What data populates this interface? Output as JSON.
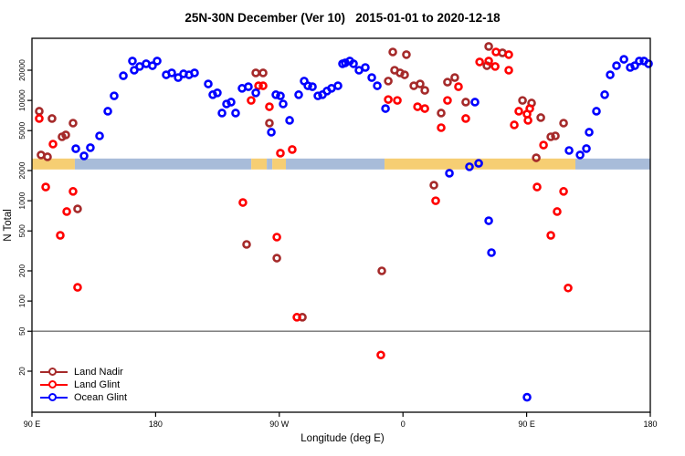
{
  "chart_data": {
    "type": "scatter",
    "title": "25N-30N December (Ver 10)   2015-01-01 to 2020-12-18",
    "xlabel": "Longitude (deg E)",
    "ylabel": "N Total",
    "x_axis": {
      "span_deg": 450,
      "tick_positions_deg": [
        0,
        90,
        180,
        270,
        360,
        450
      ],
      "tick_labels": [
        "90 E",
        "180",
        "90 W",
        "0",
        "90 E",
        "180"
      ],
      "note": "axis wraps: starts at 90E, goes east 450 degrees to 180"
    },
    "y_axis": {
      "scale": "log10",
      "tick_values": [
        20,
        50,
        100,
        200,
        500,
        1000,
        2000,
        5000,
        10000,
        20000
      ],
      "range": [
        8,
        42000
      ]
    },
    "reference_line_y": 50,
    "grid": "off",
    "legend": {
      "position": "bottom-left",
      "entries": [
        "Land Nadir",
        "Land Glint",
        "Ocean Glint"
      ]
    },
    "surface_band": {
      "center_value": 2300,
      "land_color": "#F6CE73",
      "ocean_color": "#A8BCD9",
      "segments_deg": [
        {
          "surface": "land",
          "from": 0,
          "to": 31.2
        },
        {
          "surface": "ocean",
          "from": 31.2,
          "to": 159.6
        },
        {
          "surface": "land",
          "from": 159.6,
          "to": 170.9
        },
        {
          "surface": "ocean",
          "from": 170.9,
          "to": 174.9
        },
        {
          "surface": "land",
          "from": 174.9,
          "to": 184.8
        },
        {
          "surface": "ocean",
          "from": 184.8,
          "to": 256.6
        },
        {
          "surface": "land",
          "from": 256.6,
          "to": 395.5
        },
        {
          "surface": "ocean",
          "from": 395.5,
          "to": 450
        }
      ]
    },
    "series": [
      {
        "name": "Land Nadir",
        "color": "#A52A2A",
        "points": [
          [
            5.3,
            7800
          ],
          [
            14.6,
            6600
          ],
          [
            29.9,
            5940
          ],
          [
            21.9,
            4340
          ],
          [
            24.6,
            4530
          ],
          [
            11.3,
            2740
          ],
          [
            6.6,
            2860
          ],
          [
            33.2,
            830
          ],
          [
            162.9,
            18800
          ],
          [
            168.2,
            18800
          ],
          [
            172.8,
            5940
          ],
          [
            156.2,
            367
          ],
          [
            178.2,
            268
          ],
          [
            196.8,
            69
          ],
          [
            254.6,
            200
          ],
          [
            262.6,
            30400
          ],
          [
            272.5,
            28600
          ],
          [
            263.9,
            20000
          ],
          [
            267.9,
            18800
          ],
          [
            271.2,
            18000
          ],
          [
            259.3,
            15600
          ],
          [
            277.9,
            14000
          ],
          [
            282.5,
            14600
          ],
          [
            285.9,
            12600
          ],
          [
            302.4,
            15200
          ],
          [
            307.7,
            16900
          ],
          [
            297.8,
            7480
          ],
          [
            315.7,
            9620
          ],
          [
            292.5,
            1430
          ],
          [
            332.4,
            34500
          ],
          [
            342.4,
            29800
          ],
          [
            331.1,
            22200
          ],
          [
            357.0,
            10000
          ],
          [
            363.6,
            9420
          ],
          [
            367.0,
            2680
          ],
          [
            370.3,
            6740
          ],
          [
            377.6,
            4340
          ],
          [
            380.9,
            4430
          ],
          [
            386.9,
            5940
          ]
        ]
      },
      {
        "name": "Land Glint",
        "color": "#FF0000",
        "points": [
          [
            5.3,
            6600
          ],
          [
            15.3,
            3670
          ],
          [
            10.0,
            1370
          ],
          [
            29.9,
            1240
          ],
          [
            25.3,
            780
          ],
          [
            20.6,
            452
          ],
          [
            33.2,
            137
          ],
          [
            153.5,
            961
          ],
          [
            178.2,
            434
          ],
          [
            189.4,
            3240
          ],
          [
            180.8,
            2980
          ],
          [
            192.8,
            69
          ],
          [
            253.9,
            29
          ],
          [
            259.3,
            10200
          ],
          [
            265.9,
            10000
          ],
          [
            280.6,
            8650
          ],
          [
            285.9,
            8300
          ],
          [
            164.9,
            14000
          ],
          [
            168.2,
            14000
          ],
          [
            159.5,
            10000
          ],
          [
            172.8,
            8650
          ],
          [
            302.4,
            10000
          ],
          [
            310.4,
            13700
          ],
          [
            315.7,
            6600
          ],
          [
            297.8,
            5350
          ],
          [
            293.8,
            1000
          ],
          [
            325.8,
            24200
          ],
          [
            332.4,
            24700
          ],
          [
            337.7,
            30400
          ],
          [
            347.0,
            28600
          ],
          [
            337.1,
            21800
          ],
          [
            347.0,
            20000
          ],
          [
            351.0,
            5700
          ],
          [
            354.3,
            7800
          ],
          [
            360.3,
            7320
          ],
          [
            361.0,
            6330
          ],
          [
            362.3,
            8300
          ],
          [
            367.6,
            1370
          ],
          [
            372.3,
            3590
          ],
          [
            377.6,
            452
          ],
          [
            382.2,
            780
          ],
          [
            386.9,
            1240
          ],
          [
            390.2,
            135
          ]
        ]
      },
      {
        "name": "Ocean Glint",
        "color": "#0000FF",
        "points": [
          [
            31.9,
            3300
          ],
          [
            37.9,
            2800
          ],
          [
            42.5,
            3380
          ],
          [
            49.2,
            4430
          ],
          [
            55.2,
            7800
          ],
          [
            59.8,
            11100
          ],
          [
            66.5,
            17600
          ],
          [
            73.1,
            24700
          ],
          [
            74.4,
            20000
          ],
          [
            78.4,
            21800
          ],
          [
            83.1,
            23200
          ],
          [
            87.7,
            22200
          ],
          [
            91.1,
            24700
          ],
          [
            97.7,
            18000
          ],
          [
            101.7,
            18800
          ],
          [
            106.4,
            16900
          ],
          [
            110.3,
            18400
          ],
          [
            114.3,
            18000
          ],
          [
            118.3,
            18800
          ],
          [
            128.3,
            14600
          ],
          [
            131.6,
            11400
          ],
          [
            134.9,
            11900
          ],
          [
            138.3,
            7480
          ],
          [
            141.6,
            9220
          ],
          [
            144.9,
            9620
          ],
          [
            148.2,
            7480
          ],
          [
            152.9,
            13200
          ],
          [
            157.5,
            13700
          ],
          [
            162.9,
            11900
          ],
          [
            174.2,
            4820
          ],
          [
            177.5,
            11400
          ],
          [
            180.8,
            11100
          ],
          [
            182.8,
            9220
          ],
          [
            187.5,
            6330
          ],
          [
            194.1,
            11400
          ],
          [
            198.1,
            15600
          ],
          [
            200.8,
            14000
          ],
          [
            204.1,
            13700
          ],
          [
            208.1,
            11100
          ],
          [
            211.4,
            11400
          ],
          [
            214.7,
            12400
          ],
          [
            218.0,
            13200
          ],
          [
            222.7,
            14000
          ],
          [
            226.0,
            23200
          ],
          [
            228.0,
            23700
          ],
          [
            231.3,
            24700
          ],
          [
            234.0,
            23200
          ],
          [
            238.0,
            20000
          ],
          [
            242.6,
            21300
          ],
          [
            247.3,
            16900
          ],
          [
            251.3,
            14000
          ],
          [
            257.3,
            8300
          ],
          [
            303.8,
            1880
          ],
          [
            318.4,
            2180
          ],
          [
            325.1,
            2360
          ],
          [
            322.4,
            9620
          ],
          [
            332.4,
            632
          ],
          [
            334.4,
            304
          ],
          [
            360.3,
            11
          ],
          [
            390.9,
            3170
          ],
          [
            398.9,
            2860
          ],
          [
            403.5,
            3310
          ],
          [
            405.5,
            4820
          ],
          [
            410.8,
            7800
          ],
          [
            416.8,
            11400
          ],
          [
            420.8,
            18000
          ],
          [
            425.4,
            22200
          ],
          [
            430.8,
            25700
          ],
          [
            435.4,
            21300
          ],
          [
            438.7,
            22200
          ],
          [
            442.0,
            24700
          ],
          [
            445.4,
            24700
          ],
          [
            448.7,
            23200
          ]
        ]
      }
    ]
  }
}
